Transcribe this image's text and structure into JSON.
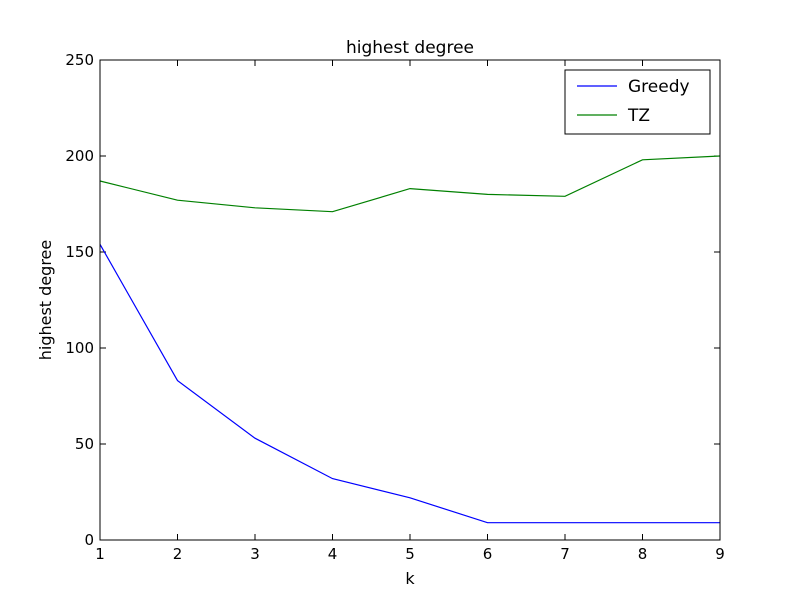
{
  "chart_data": {
    "type": "line",
    "title": "highest degree",
    "xlabel": "k",
    "ylabel": "highest degree",
    "x": [
      1,
      2,
      3,
      4,
      5,
      6,
      7,
      8,
      9
    ],
    "xlim": [
      1,
      9
    ],
    "ylim": [
      0,
      250
    ],
    "xticks": [
      1,
      2,
      3,
      4,
      5,
      6,
      7,
      8,
      9
    ],
    "yticks": [
      0,
      50,
      100,
      150,
      200,
      250
    ],
    "grid": false,
    "legend_position": "top-right",
    "series": [
      {
        "name": "Greedy",
        "color": "#0000ff",
        "values": [
          154,
          83,
          53,
          32,
          22,
          9,
          9,
          9,
          9
        ]
      },
      {
        "name": "TZ",
        "color": "#008000",
        "values": [
          187,
          177,
          173,
          171,
          183,
          180,
          179,
          198,
          200
        ]
      }
    ]
  }
}
